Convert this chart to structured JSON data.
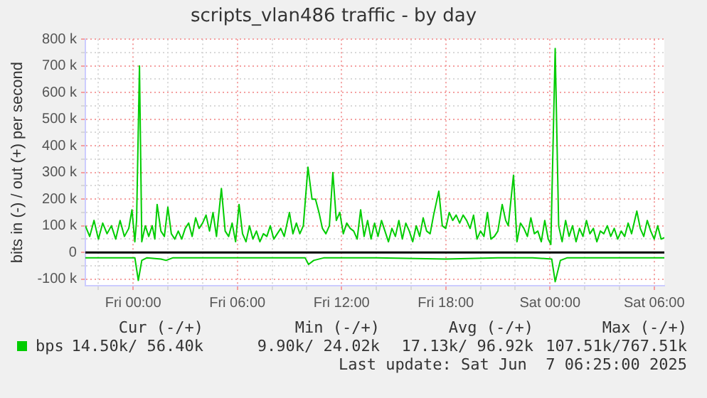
{
  "chart_data": {
    "type": "line",
    "title": "scripts_vlan486 traffic - by day",
    "ylabel": "bits in (-) / out (+) per second",
    "xlim": [
      "2025-06-05T21:15",
      "2025-06-07T06:35"
    ],
    "xticks": [
      {
        "value": "2025-06-05T22:00",
        "label": null
      },
      {
        "value": "2025-06-06T00:00",
        "label": "Fri 00:00"
      },
      {
        "value": "2025-06-06T02:00",
        "label": null
      },
      {
        "value": "2025-06-06T04:00",
        "label": null
      },
      {
        "value": "2025-06-06T06:00",
        "label": "Fri 06:00"
      },
      {
        "value": "2025-06-06T08:00",
        "label": null
      },
      {
        "value": "2025-06-06T10:00",
        "label": null
      },
      {
        "value": "2025-06-06T12:00",
        "label": "Fri 12:00"
      },
      {
        "value": "2025-06-06T14:00",
        "label": null
      },
      {
        "value": "2025-06-06T16:00",
        "label": null
      },
      {
        "value": "2025-06-06T18:00",
        "label": "Fri 18:00"
      },
      {
        "value": "2025-06-06T20:00",
        "label": null
      },
      {
        "value": "2025-06-06T22:00",
        "label": null
      },
      {
        "value": "2025-06-07T00:00",
        "label": "Sat 00:00"
      },
      {
        "value": "2025-06-07T02:00",
        "label": null
      },
      {
        "value": "2025-06-07T04:00",
        "label": null
      },
      {
        "value": "2025-06-07T06:00",
        "label": "Sat 06:00"
      }
    ],
    "ylim": [
      -125000,
      800000
    ],
    "yticks": [
      {
        "value": -100000,
        "label": "-100 k"
      },
      {
        "value": -50000,
        "label": null
      },
      {
        "value": 0,
        "label": "0"
      },
      {
        "value": 50000,
        "label": null
      },
      {
        "value": 100000,
        "label": "100 k"
      },
      {
        "value": 150000,
        "label": null
      },
      {
        "value": 200000,
        "label": "200 k"
      },
      {
        "value": 250000,
        "label": null
      },
      {
        "value": 300000,
        "label": "300 k"
      },
      {
        "value": 350000,
        "label": null
      },
      {
        "value": 400000,
        "label": "400 k"
      },
      {
        "value": 450000,
        "label": null
      },
      {
        "value": 500000,
        "label": "500 k"
      },
      {
        "value": 550000,
        "label": null
      },
      {
        "value": 600000,
        "label": "600 k"
      },
      {
        "value": 650000,
        "label": null
      },
      {
        "value": 700000,
        "label": "700 k"
      },
      {
        "value": 750000,
        "label": null
      },
      {
        "value": 800000,
        "label": "800 k"
      }
    ],
    "grid": true,
    "legend": "bottom left",
    "marker": "none",
    "line_style": "solid",
    "series": [
      {
        "name": "bps",
        "color": "#00cc00",
        "x": [
          "2025-06-05T21:15",
          "2025-06-05T21:30",
          "2025-06-05T21:45",
          "2025-06-05T22:00",
          "2025-06-05T22:15",
          "2025-06-05T22:30",
          "2025-06-05T22:45",
          "2025-06-05T23:00",
          "2025-06-05T23:15",
          "2025-06-05T23:30",
          "2025-06-05T23:45",
          "2025-06-05T23:56",
          "2025-06-06T00:06",
          "2025-06-06T00:12",
          "2025-06-06T00:22",
          "2025-06-06T00:30",
          "2025-06-06T00:42",
          "2025-06-06T00:54",
          "2025-06-06T01:06",
          "2025-06-06T01:15",
          "2025-06-06T01:23",
          "2025-06-06T01:36",
          "2025-06-06T01:48",
          "2025-06-06T02:00",
          "2025-06-06T02:12",
          "2025-06-06T02:24",
          "2025-06-06T02:36",
          "2025-06-06T02:48",
          "2025-06-06T03:00",
          "2025-06-06T03:12",
          "2025-06-06T03:24",
          "2025-06-06T03:36",
          "2025-06-06T03:48",
          "2025-06-06T04:00",
          "2025-06-06T04:12",
          "2025-06-06T04:24",
          "2025-06-06T04:36",
          "2025-06-06T04:48",
          "2025-06-06T05:05",
          "2025-06-06T05:18",
          "2025-06-06T05:30",
          "2025-06-06T05:42",
          "2025-06-06T05:54",
          "2025-06-06T06:06",
          "2025-06-06T06:18",
          "2025-06-06T06:30",
          "2025-06-06T06:42",
          "2025-06-06T06:54",
          "2025-06-06T07:06",
          "2025-06-06T07:18",
          "2025-06-06T07:30",
          "2025-06-06T07:42",
          "2025-06-06T07:54",
          "2025-06-06T08:06",
          "2025-06-06T08:18",
          "2025-06-06T08:30",
          "2025-06-06T08:42",
          "2025-06-06T09:00",
          "2025-06-06T09:12",
          "2025-06-06T09:24",
          "2025-06-06T09:36",
          "2025-06-06T09:48",
          "2025-06-06T10:04",
          "2025-06-06T10:18",
          "2025-06-06T10:30",
          "2025-06-06T10:42",
          "2025-06-06T10:54",
          "2025-06-06T11:06",
          "2025-06-06T11:18",
          "2025-06-06T11:30",
          "2025-06-06T11:42",
          "2025-06-06T11:54",
          "2025-06-06T12:06",
          "2025-06-06T12:18",
          "2025-06-06T12:30",
          "2025-06-06T12:42",
          "2025-06-06T12:54",
          "2025-06-06T13:06",
          "2025-06-06T13:18",
          "2025-06-06T13:30",
          "2025-06-06T13:42",
          "2025-06-06T13:54",
          "2025-06-06T14:06",
          "2025-06-06T14:18",
          "2025-06-06T14:30",
          "2025-06-06T14:42",
          "2025-06-06T14:54",
          "2025-06-06T15:06",
          "2025-06-06T15:18",
          "2025-06-06T15:30",
          "2025-06-06T15:42",
          "2025-06-06T15:54",
          "2025-06-06T16:06",
          "2025-06-06T16:18",
          "2025-06-06T16:30",
          "2025-06-06T16:42",
          "2025-06-06T16:54",
          "2025-06-06T17:06",
          "2025-06-06T17:18",
          "2025-06-06T17:36",
          "2025-06-06T17:48",
          "2025-06-06T18:00",
          "2025-06-06T18:12",
          "2025-06-06T18:24",
          "2025-06-06T18:36",
          "2025-06-06T18:48",
          "2025-06-06T19:00",
          "2025-06-06T19:12",
          "2025-06-06T19:24",
          "2025-06-06T19:36",
          "2025-06-06T19:48",
          "2025-06-06T20:00",
          "2025-06-06T20:12",
          "2025-06-06T20:24",
          "2025-06-06T20:36",
          "2025-06-06T20:48",
          "2025-06-06T21:00",
          "2025-06-06T21:15",
          "2025-06-06T21:27",
          "2025-06-06T21:36",
          "2025-06-06T21:54",
          "2025-06-06T22:06",
          "2025-06-06T22:18",
          "2025-06-06T22:30",
          "2025-06-06T22:42",
          "2025-06-06T22:54",
          "2025-06-06T23:06",
          "2025-06-06T23:18",
          "2025-06-06T23:30",
          "2025-06-06T23:42",
          "2025-06-06T23:54",
          "2025-06-07T00:03",
          "2025-06-07T00:18",
          "2025-06-07T00:30",
          "2025-06-07T00:42",
          "2025-06-07T00:54",
          "2025-06-07T01:06",
          "2025-06-07T01:18",
          "2025-06-07T01:30",
          "2025-06-07T01:42",
          "2025-06-07T01:54",
          "2025-06-07T02:06",
          "2025-06-07T02:18",
          "2025-06-07T02:30",
          "2025-06-07T02:42",
          "2025-06-07T02:54",
          "2025-06-07T03:06",
          "2025-06-07T03:18",
          "2025-06-07T03:30",
          "2025-06-07T03:42",
          "2025-06-07T03:54",
          "2025-06-07T04:06",
          "2025-06-07T04:18",
          "2025-06-07T04:30",
          "2025-06-07T04:42",
          "2025-06-07T05:00",
          "2025-06-07T05:12",
          "2025-06-07T05:24",
          "2025-06-07T05:36",
          "2025-06-07T05:48",
          "2025-06-07T06:00",
          "2025-06-07T06:12",
          "2025-06-07T06:24",
          "2025-06-07T06:35"
        ],
        "values": [
          100000,
          60000,
          120000,
          50000,
          110000,
          70000,
          100000,
          50000,
          120000,
          60000,
          90000,
          160000,
          40000,
          120000,
          700000,
          40000,
          100000,
          60000,
          100000,
          50000,
          180000,
          80000,
          60000,
          170000,
          70000,
          50000,
          80000,
          50000,
          90000,
          110000,
          60000,
          130000,
          90000,
          110000,
          140000,
          80000,
          150000,
          60000,
          240000,
          80000,
          60000,
          110000,
          40000,
          180000,
          70000,
          40000,
          100000,
          50000,
          80000,
          40000,
          70000,
          60000,
          100000,
          50000,
          70000,
          90000,
          60000,
          150000,
          70000,
          110000,
          70000,
          100000,
          320000,
          200000,
          200000,
          150000,
          90000,
          70000,
          100000,
          300000,
          120000,
          150000,
          70000,
          110000,
          90000,
          80000,
          50000,
          160000,
          60000,
          120000,
          50000,
          110000,
          60000,
          120000,
          80000,
          40000,
          90000,
          60000,
          120000,
          50000,
          110000,
          80000,
          40000,
          100000,
          60000,
          130000,
          80000,
          70000,
          140000,
          230000,
          100000,
          90000,
          150000,
          120000,
          140000,
          110000,
          140000,
          120000,
          90000,
          140000,
          50000,
          80000,
          60000,
          150000,
          50000,
          60000,
          80000,
          180000,
          120000,
          100000,
          290000,
          40000,
          110000,
          90000,
          60000,
          130000,
          70000,
          80000,
          40000,
          120000,
          50000,
          30000,
          765000,
          100000,
          40000,
          120000,
          60000,
          100000,
          40000,
          90000,
          60000,
          120000,
          70000,
          90000,
          40000,
          80000,
          70000,
          100000,
          60000,
          90000,
          50000,
          80000,
          60000,
          110000,
          70000,
          155000,
          90000,
          60000,
          120000,
          80000,
          50000,
          100000,
          50000,
          55000
        ]
      },
      {
        "color": "#00cc00",
        "x": [
          "2025-06-05T21:15",
          "2025-06-05T23:00",
          "2025-06-06T00:06",
          "2025-06-06T00:18",
          "2025-06-06T00:30",
          "2025-06-06T00:48",
          "2025-06-06T01:36",
          "2025-06-06T01:54",
          "2025-06-06T02:18",
          "2025-06-06T05:00",
          "2025-06-06T08:00",
          "2025-06-06T09:54",
          "2025-06-06T10:06",
          "2025-06-06T10:24",
          "2025-06-06T11:00",
          "2025-06-06T14:00",
          "2025-06-06T18:00",
          "2025-06-06T21:00",
          "2025-06-06T23:00",
          "2025-06-07T00:06",
          "2025-06-07T00:18",
          "2025-06-07T00:36",
          "2025-06-07T01:00",
          "2025-06-07T04:00",
          "2025-06-07T06:35"
        ],
        "values": [
          -20000,
          -20000,
          -20000,
          -105000,
          -30000,
          -20000,
          -25000,
          -30000,
          -20000,
          -20000,
          -20000,
          -20000,
          -45000,
          -30000,
          -20000,
          -20000,
          -25000,
          -20000,
          -20000,
          -25000,
          -110000,
          -30000,
          -20000,
          -20000,
          -20000
        ]
      }
    ],
    "ref_lines": [
      {
        "axis": "y",
        "value": 0,
        "color": "#000000"
      }
    ],
    "annotations": [
      "Cur (-/+)",
      "Min (-/+)",
      "Avg (-/+)",
      "Max (-/+)",
      "14.50k/ 56.40k",
      "9.90k/ 24.02k",
      "17.13k/ 96.92k",
      "107.51k/767.51k",
      "Last update: Sat Jun  7 06:25:00 2025"
    ]
  }
}
